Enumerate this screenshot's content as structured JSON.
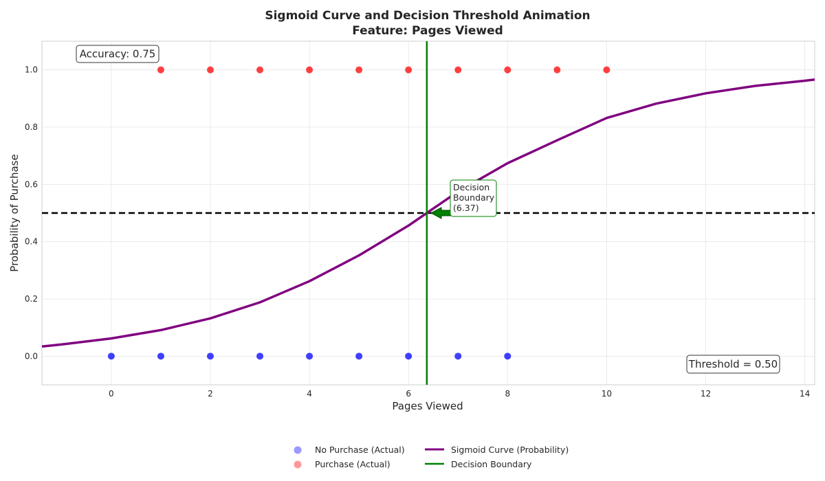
{
  "chart_data": {
    "type": "scatter",
    "title": "Sigmoid Curve and Decision Threshold Animation",
    "subtitle": "Feature: Pages Viewed",
    "xlabel": "Pages Viewed",
    "ylabel": "Probability of Purchase",
    "xlim": [
      -1.4,
      14.2
    ],
    "ylim": [
      -0.1,
      1.1
    ],
    "xticks": [
      0,
      2,
      4,
      6,
      8,
      10,
      12,
      14
    ],
    "yticks": [
      0.0,
      0.2,
      0.4,
      0.6,
      0.8,
      1.0
    ],
    "xtick_labels": [
      "0",
      "2",
      "4",
      "6",
      "8",
      "10",
      "12",
      "14"
    ],
    "ytick_labels": [
      "0.0",
      "0.2",
      "0.4",
      "0.6",
      "0.8",
      "1.0"
    ],
    "grid": true,
    "legend_position": "bottom-center",
    "series": [
      {
        "name": "No Purchase (Actual)",
        "kind": "scatter",
        "color": "#0000ff",
        "x": [
          0,
          1,
          2,
          3,
          4,
          5,
          6,
          7,
          8
        ],
        "y": [
          0,
          0,
          0,
          0,
          0,
          0,
          0,
          0,
          0
        ]
      },
      {
        "name": "Purchase (Actual)",
        "kind": "scatter",
        "color": "#ff0000",
        "x": [
          1,
          2,
          3,
          4,
          5,
          6,
          7,
          8,
          9,
          10
        ],
        "y": [
          1,
          1,
          1,
          1,
          1,
          1,
          1,
          1,
          1,
          1
        ]
      },
      {
        "name": "Sigmoid Curve (Probability)",
        "kind": "line",
        "color": "#800080",
        "x": [
          -1.4,
          -1,
          0,
          1,
          2,
          3,
          4,
          5,
          6,
          6.37,
          7,
          8,
          9,
          10,
          11,
          12,
          13,
          14,
          14.2
        ],
        "y": [
          0.034,
          0.041,
          0.062,
          0.091,
          0.132,
          0.188,
          0.262,
          0.352,
          0.456,
          0.5,
          0.575,
          0.674,
          0.754,
          0.832,
          0.882,
          0.918,
          0.944,
          0.962,
          0.966
        ]
      },
      {
        "name": "Decision Boundary",
        "kind": "vline",
        "color": "#008000",
        "x": 6.37
      }
    ],
    "threshold": {
      "y": 0.5,
      "label": "Threshold = 0.50"
    },
    "accuracy_label": "Accuracy: 0.75",
    "annotation": {
      "lines": [
        "Decision",
        "Boundary",
        "(6.37)"
      ],
      "x": 6.37,
      "y": 0.5
    }
  }
}
